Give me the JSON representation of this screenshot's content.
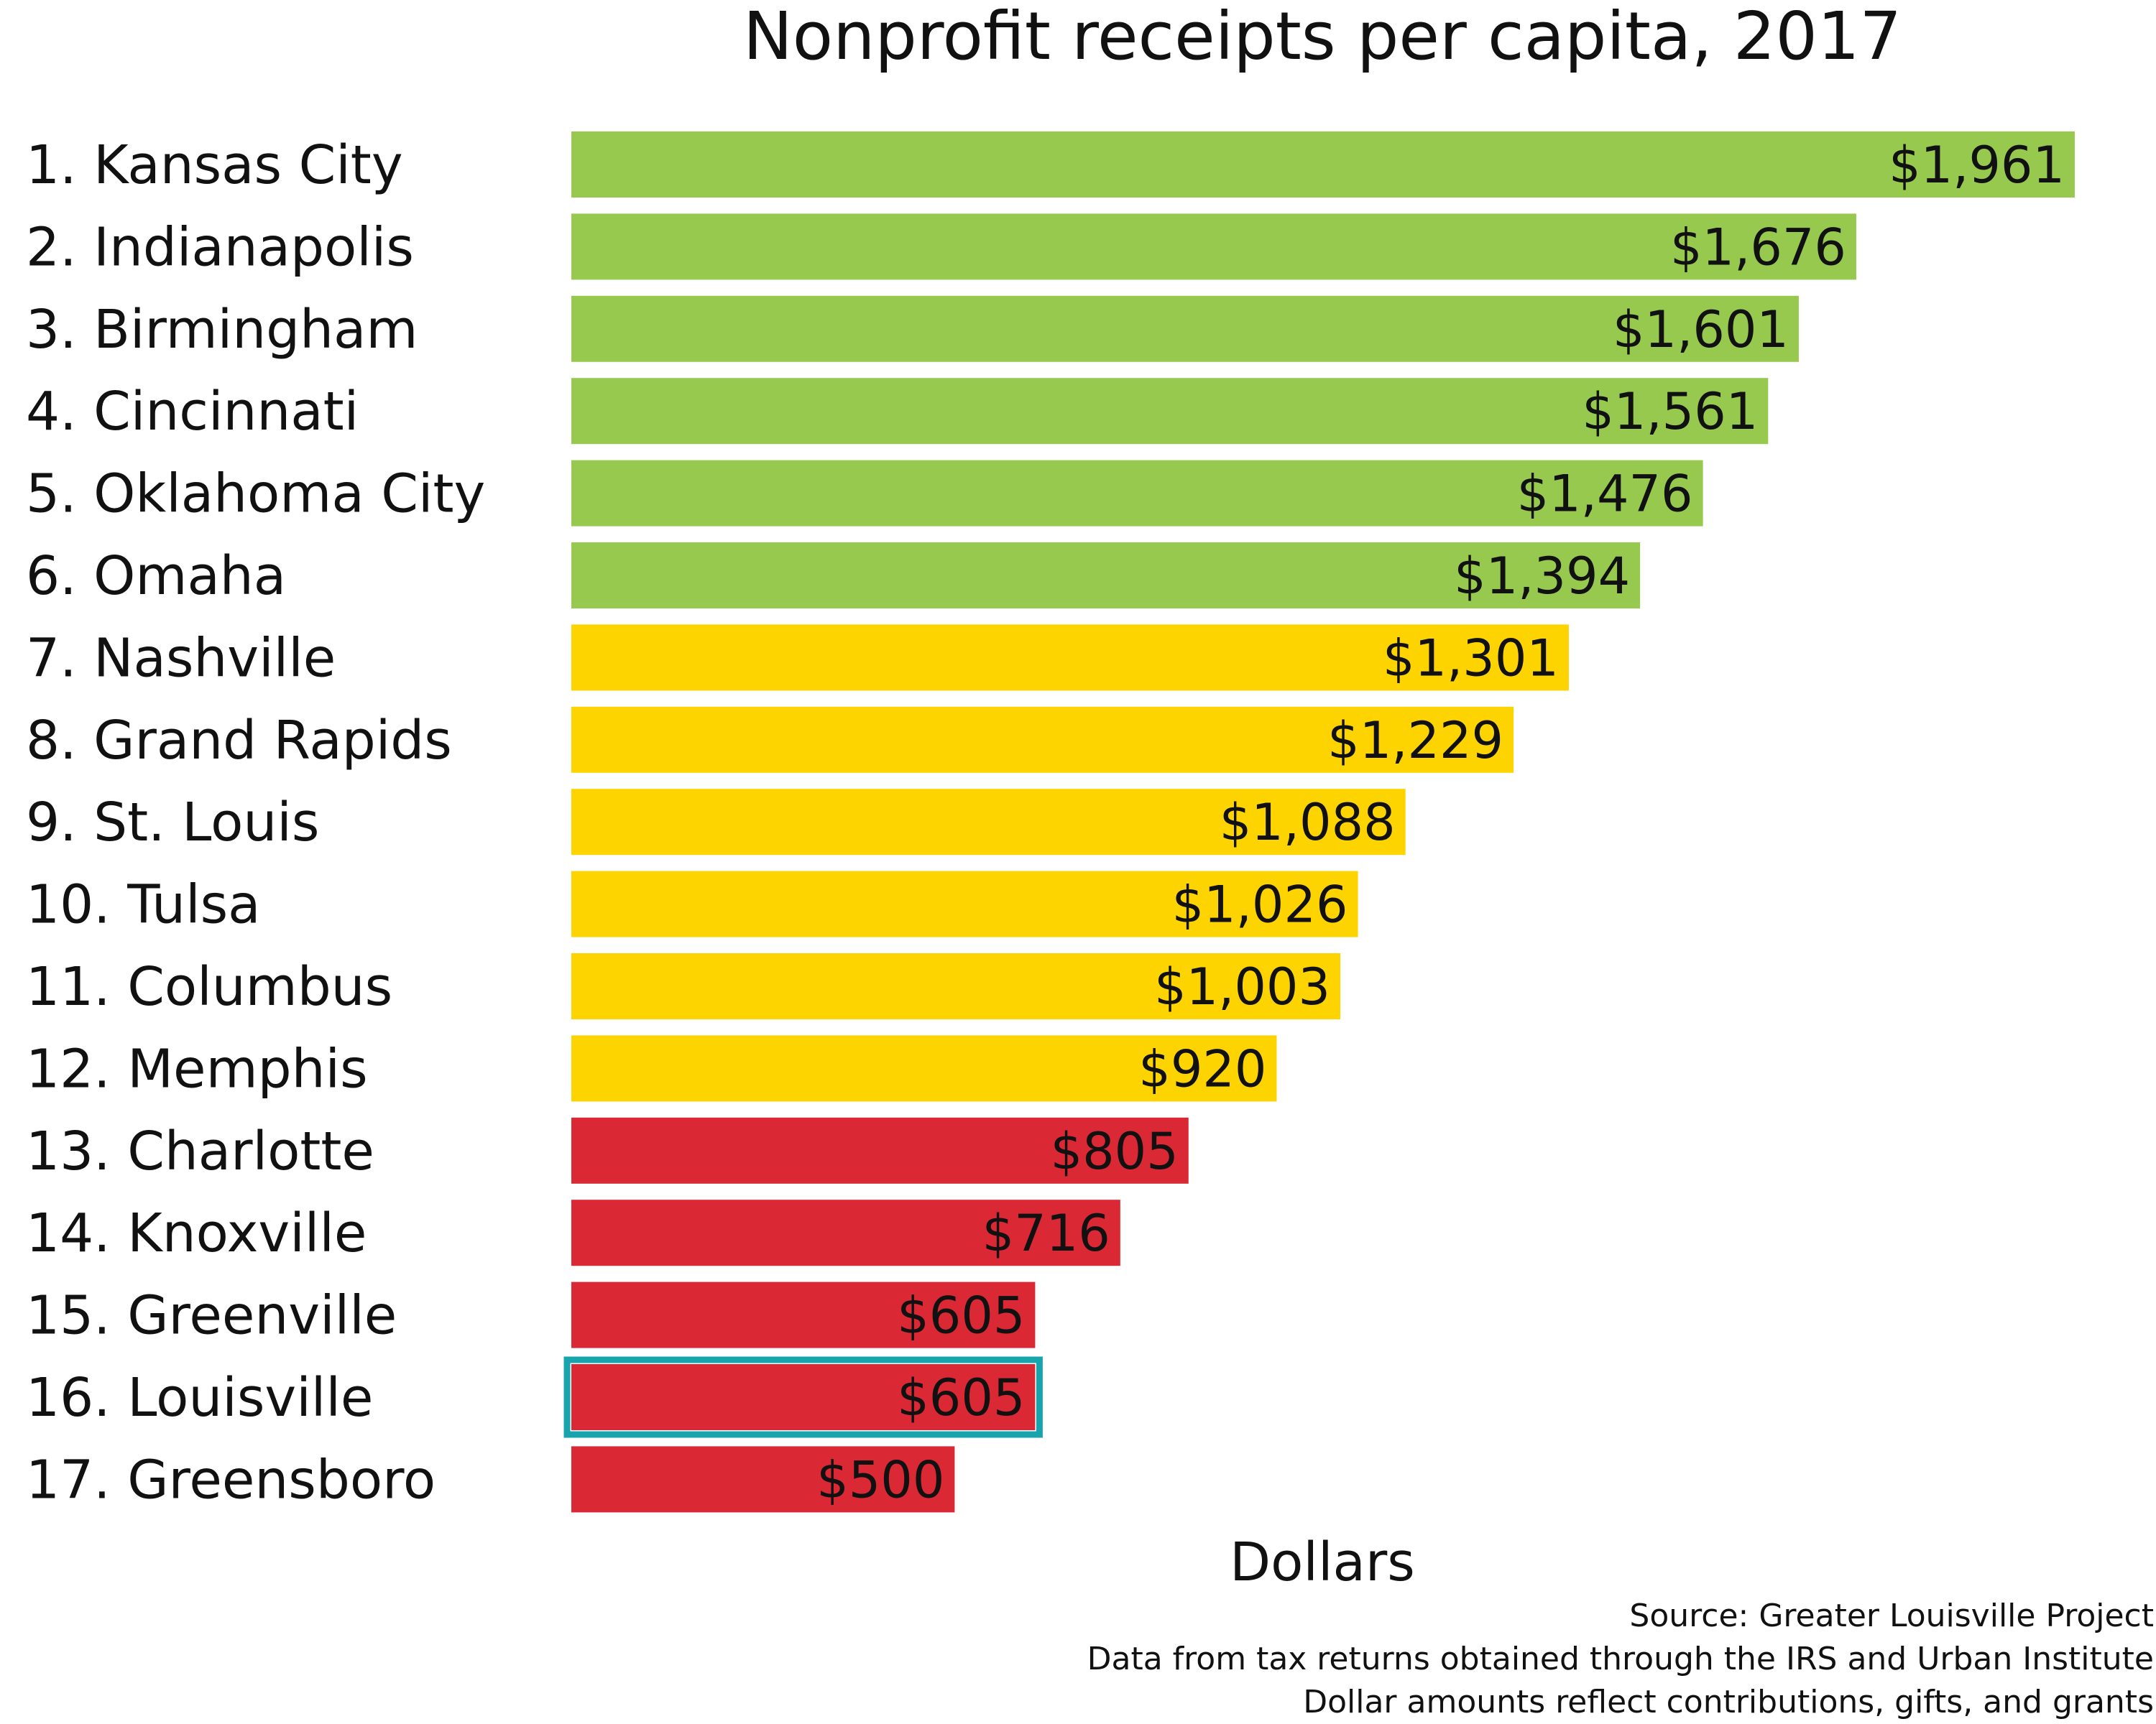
{
  "chart_data": {
    "type": "bar",
    "orientation": "horizontal",
    "title": "Nonprofit receipts per capita, 2017",
    "xlabel": "Dollars",
    "ylabel": "",
    "xlim": [
      0,
      2000
    ],
    "grid": false,
    "legend": "none",
    "categories": [
      "1. Kansas City",
      "2. Indianapolis",
      "3. Birmingham",
      "4. Cincinnati",
      "5. Oklahoma City",
      "6. Omaha",
      "7. Nashville",
      "8. Grand Rapids",
      "9. St. Louis",
      "10. Tulsa",
      "11. Columbus",
      "12. Memphis",
      "13. Charlotte",
      "14. Knoxville",
      "15. Greenville",
      "16. Louisville",
      "17. Greensboro"
    ],
    "values": [
      1961,
      1676,
      1601,
      1561,
      1476,
      1394,
      1301,
      1229,
      1088,
      1026,
      1003,
      920,
      805,
      716,
      605,
      605,
      500
    ],
    "value_labels": [
      "$1,961",
      "$1,676",
      "$1,601",
      "$1,561",
      "$1,476",
      "$1,394",
      "$1,301",
      "$1,229",
      "$1,088",
      "$1,026",
      "$1,003",
      "$920",
      "$805",
      "$716",
      "$605",
      "$605",
      "$500"
    ],
    "tiers": [
      "green",
      "green",
      "green",
      "green",
      "green",
      "green",
      "yellow",
      "yellow",
      "yellow",
      "yellow",
      "yellow",
      "yellow",
      "red",
      "red",
      "red",
      "red",
      "red"
    ],
    "colors": {
      "green": "#97c94f",
      "yellow": "#fdd300",
      "red": "#da2835",
      "highlight": "#18a4ac"
    },
    "highlight_index": 15,
    "notes": [
      "Source: Greater Louisville Project",
      "Data from tax returns obtained through the IRS and Urban Institute",
      "Dollar amounts reflect contributions, gifts, and grants"
    ]
  }
}
